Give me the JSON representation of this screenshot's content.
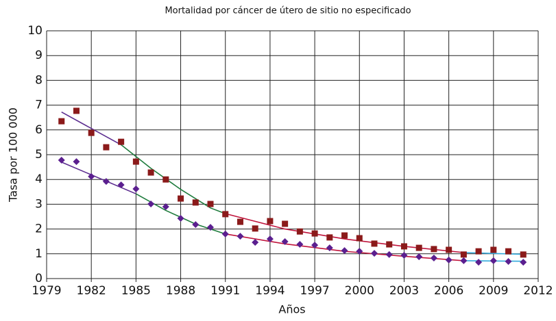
{
  "chart_data": {
    "type": "scatter",
    "title": "Mortalidad por cáncer de útero de sitio no especificado",
    "x_label": "Años",
    "y_label": "Tasa por 100 000",
    "xlim": [
      1979,
      2012
    ],
    "xticks": [
      1979,
      1982,
      1985,
      1988,
      1991,
      1994,
      1997,
      2000,
      2003,
      2006,
      2009,
      2012
    ],
    "ylim": [
      0,
      10
    ],
    "yticks": [
      0,
      1,
      2,
      3,
      4,
      5,
      6,
      7,
      8,
      9,
      10
    ],
    "grid": true,
    "series": [
      {
        "marker": "square",
        "color": "#8b1a1a",
        "x": [
          1980,
          1981,
          1982,
          1983,
          1984,
          1985,
          1986,
          1987,
          1988,
          1989,
          1990,
          1991,
          1992,
          1993,
          1994,
          1995,
          1996,
          1997,
          1998,
          1999,
          2000,
          2001,
          2002,
          2003,
          2004,
          2005,
          2006,
          2007,
          2008,
          2009,
          2010,
          2011
        ],
        "values": [
          6.35,
          6.77,
          5.88,
          5.3,
          5.52,
          4.72,
          4.28,
          4.0,
          3.23,
          3.07,
          3.01,
          2.6,
          2.29,
          2.02,
          2.32,
          2.21,
          1.9,
          1.82,
          1.66,
          1.74,
          1.63,
          1.41,
          1.38,
          1.3,
          1.24,
          1.19,
          1.16,
          0.97,
          1.1,
          1.16,
          1.1,
          0.97
        ]
      },
      {
        "marker": "diamond",
        "color": "#5b1f8f",
        "x": [
          1980,
          1981,
          1982,
          1983,
          1984,
          1985,
          1986,
          1987,
          1988,
          1989,
          1990,
          1991,
          1992,
          1993,
          1994,
          1995,
          1996,
          1997,
          1998,
          1999,
          2000,
          2001,
          2002,
          2003,
          2004,
          2005,
          2006,
          2007,
          2008,
          2009,
          2010,
          2011
        ],
        "values": [
          4.78,
          4.72,
          4.12,
          3.92,
          3.78,
          3.62,
          3.01,
          2.9,
          2.43,
          2.18,
          2.07,
          1.8,
          1.71,
          1.46,
          1.6,
          1.49,
          1.38,
          1.35,
          1.24,
          1.13,
          1.1,
          1.02,
          0.97,
          0.94,
          0.88,
          0.83,
          0.75,
          0.72,
          0.66,
          0.72,
          0.69,
          0.66
        ]
      }
    ],
    "trend_lines": [
      {
        "color": "#5b2c8f",
        "x": [
          1980,
          1984
        ],
        "values": [
          6.72,
          5.4
        ]
      },
      {
        "color": "#1e7b3c",
        "x": [
          1984,
          1986,
          1988,
          1990,
          1991
        ],
        "values": [
          5.4,
          4.45,
          3.6,
          2.85,
          2.62
        ]
      },
      {
        "color": "#c0143c",
        "x": [
          1991,
          1995,
          1999,
          2003,
          2007
        ],
        "values": [
          2.62,
          2.0,
          1.6,
          1.3,
          1.05
        ]
      },
      {
        "color": "#33aadd",
        "x": [
          2007,
          2011
        ],
        "values": [
          1.05,
          0.98
        ]
      },
      {
        "color": "#5b2c8f",
        "x": [
          1980,
          1985
        ],
        "values": [
          4.7,
          3.42
        ]
      },
      {
        "color": "#1e7b3c",
        "x": [
          1985,
          1987,
          1989,
          1991
        ],
        "values": [
          3.42,
          2.75,
          2.2,
          1.8
        ]
      },
      {
        "color": "#c0143c",
        "x": [
          1991,
          1995,
          1999,
          2003,
          2007
        ],
        "values": [
          1.8,
          1.4,
          1.1,
          0.9,
          0.72
        ]
      },
      {
        "color": "#33aadd",
        "x": [
          2007,
          2011
        ],
        "values": [
          0.72,
          0.7
        ]
      }
    ]
  }
}
